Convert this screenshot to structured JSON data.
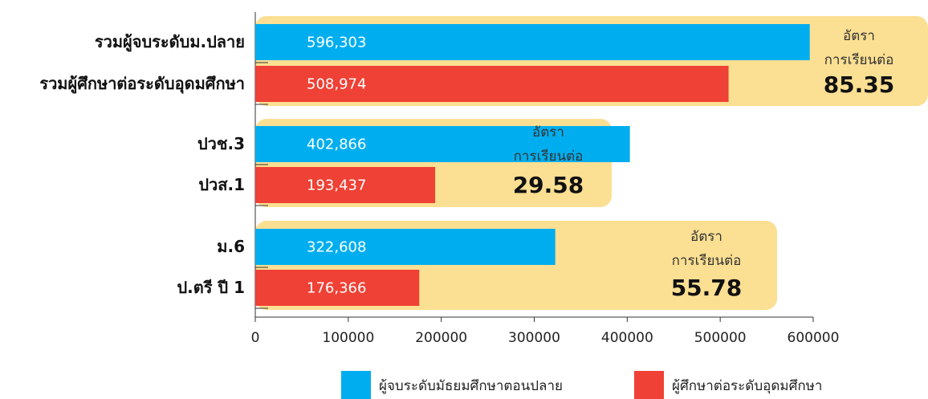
{
  "chart_data": {
    "type": "bar",
    "series": [
      {
        "name": "ผู้จบระดับมัธยมศึกษาตอนปลาย",
        "color": "#00aeef",
        "labels": [
          "รวมผู้จบระดับม.ปลาย",
          "ปวช.3",
          "ม.6"
        ],
        "values": [
          596303,
          402866,
          322608
        ],
        "value_labels": [
          "596,303",
          "402,866",
          "322,608"
        ]
      },
      {
        "name": "ผู้ศึกษาต่อระดับอุดมศึกษา",
        "color": "#ef4135",
        "labels": [
          "รวมผู้ศึกษาต่อระดับอุดมศึกษา",
          "ปวส.1",
          "ป.ตรี ปี 1"
        ],
        "values": [
          508974,
          193437,
          176366
        ],
        "value_labels": [
          "508,974",
          "193,437",
          "176,366"
        ]
      }
    ],
    "annotations": [
      {
        "lines": [
          "อัตรา",
          "การเรียนต่อ"
        ],
        "value": 85.35
      },
      {
        "lines": [
          "อัตรา",
          "การเรียนต่อ"
        ],
        "value": 29.58
      },
      {
        "lines": [
          "อัตรา",
          "การเรียนต่อ"
        ],
        "value": 55.78
      }
    ],
    "box_color": "#fbdf92",
    "xlim": [
      0,
      600000
    ],
    "xticks": [
      0,
      100000,
      200000,
      300000,
      400000,
      500000,
      600000
    ]
  }
}
